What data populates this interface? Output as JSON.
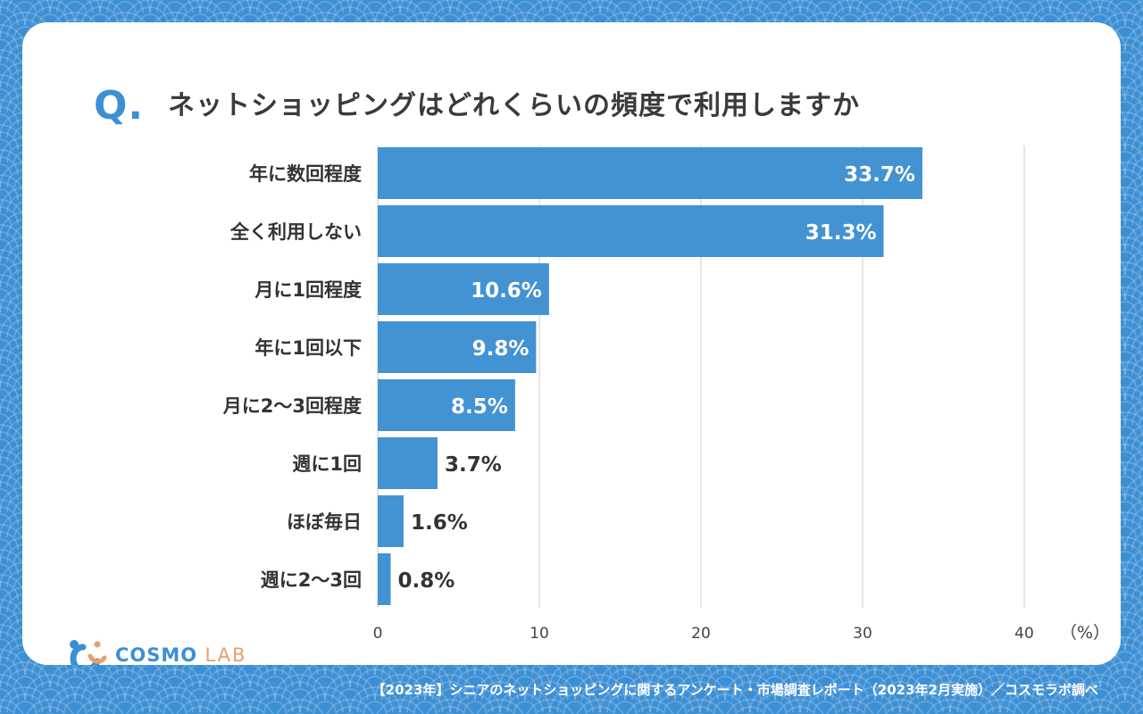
{
  "question_mark": "Q.",
  "title": "ネットショッピングはどれくらいの頻度で利用しますか",
  "footer": "【2023年】シニアのネットショッピングに関するアンケート・市場調査レポート（2023年2月実施）／コスモラボ調べ",
  "logo": {
    "text_a": "COSMO",
    "text_b": "LAB"
  },
  "colors": {
    "background": "#3d8fd4",
    "bar": "#4393d3",
    "text": "#333333",
    "logo_orange": "#e9a06a"
  },
  "chart_data": {
    "type": "bar",
    "orientation": "horizontal",
    "categories": [
      "年に数回程度",
      "全く利用しない",
      "月に1回程度",
      "年に1回以下",
      "月に2〜3回程度",
      "週に1回",
      "ほぼ毎日",
      "週に2〜3回"
    ],
    "values": [
      33.7,
      31.3,
      10.6,
      9.8,
      8.5,
      3.7,
      1.6,
      0.8
    ],
    "value_labels": [
      "33.7%",
      "31.3%",
      "10.6%",
      "9.8%",
      "8.5%",
      "3.7%",
      "1.6%",
      "0.8%"
    ],
    "xlim": [
      0,
      40
    ],
    "xticks": [
      "0",
      "10",
      "20",
      "30",
      "40"
    ],
    "xunit": "（%）",
    "grid": "vertical"
  }
}
